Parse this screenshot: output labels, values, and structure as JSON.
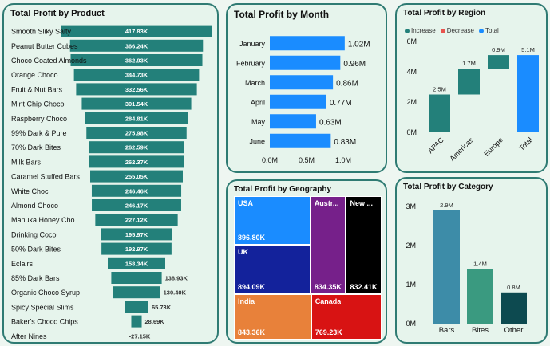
{
  "colors": {
    "teal": "#23807a",
    "blue": "#1a8cff",
    "increase": "#23807a",
    "decrease": "#e8544e",
    "total": "#1a8cff"
  },
  "chart_data": [
    {
      "id": "product",
      "type": "bar",
      "title": "Total Profit by Product",
      "orientation": "horizontal-funnel",
      "categories": [
        "Smooth Sliky Salty",
        "Peanut Butter Cubes",
        "Choco Coated Almonds",
        "Orange Choco",
        "Fruit & Nut Bars",
        "Mint Chip Choco",
        "Raspberry Choco",
        "99% Dark & Pure",
        "70% Dark Bites",
        "Milk Bars",
        "Caramel Stuffed Bars",
        "White Choc",
        "Almond Choco",
        "Manuka Honey Choco",
        "Drinking Coco",
        "50% Dark Bites",
        "Eclairs",
        "85% Dark Bars",
        "Organic Choco Syrup",
        "Spicy Special Slims",
        "Baker's Choco Chips",
        "After Nines"
      ],
      "display_labels": [
        "Smooth Sliky Salty",
        "Peanut Butter Cubes",
        "Choco Coated Almonds",
        "Orange Choco",
        "Fruit & Nut Bars",
        "Mint Chip Choco",
        "Raspberry Choco",
        "99% Dark & Pure",
        "70% Dark Bites",
        "Milk Bars",
        "Caramel Stuffed Bars",
        "White Choc",
        "Almond Choco",
        "Manuka Honey Cho...",
        "Drinking Coco",
        "50% Dark Bites",
        "Eclairs",
        "85% Dark Bars",
        "Organic Choco Syrup",
        "Spicy Special Slims",
        "Baker's Choco Chips",
        "After Nines"
      ],
      "values": [
        417.83,
        366.24,
        362.93,
        344.73,
        332.56,
        301.54,
        284.81,
        275.98,
        262.59,
        262.37,
        255.05,
        246.46,
        246.17,
        227.12,
        195.97,
        192.97,
        158.34,
        138.93,
        130.4,
        65.73,
        28.69,
        -27.15
      ],
      "value_labels": [
        "417.83K",
        "366.24K",
        "362.93K",
        "344.73K",
        "332.56K",
        "301.54K",
        "284.81K",
        "275.98K",
        "262.59K",
        "262.37K",
        "255.05K",
        "246.46K",
        "246.17K",
        "227.12K",
        "195.97K",
        "192.97K",
        "158.34K",
        "138.93K",
        "130.40K",
        "65.73K",
        "28.69K",
        "-27.15K"
      ],
      "unit": "K"
    },
    {
      "id": "month",
      "type": "bar",
      "title": "Total Profit by Month",
      "orientation": "horizontal",
      "categories": [
        "January",
        "February",
        "March",
        "April",
        "May",
        "June"
      ],
      "values": [
        1.02,
        0.96,
        0.86,
        0.77,
        0.63,
        0.83
      ],
      "value_labels": [
        "1.02M",
        "0.96M",
        "0.86M",
        "0.77M",
        "0.63M",
        "0.83M"
      ],
      "xlim": [
        0,
        1.0
      ],
      "x_ticks": [
        0,
        0.5,
        1.0
      ],
      "x_tick_labels": [
        "0.0M",
        "0.5M",
        "1.0M"
      ]
    },
    {
      "id": "region",
      "type": "bar",
      "subtype": "waterfall",
      "title": "Total Profit by Region",
      "legend": [
        "Increase",
        "Decrease",
        "Total"
      ],
      "legend_position": "top-left",
      "categories": [
        "APAC",
        "Americas",
        "Europe",
        "Total"
      ],
      "steps": [
        {
          "category": "APAC",
          "kind": "increase",
          "start": 0,
          "end": 2.5,
          "label": "2.5M"
        },
        {
          "category": "Americas",
          "kind": "increase",
          "start": 2.5,
          "end": 4.2,
          "label": "1.7M"
        },
        {
          "category": "Europe",
          "kind": "increase",
          "start": 4.2,
          "end": 5.1,
          "label": "0.9M"
        },
        {
          "category": "Total",
          "kind": "total",
          "start": 0,
          "end": 5.1,
          "label": "5.1M"
        }
      ],
      "ylim": [
        0,
        6
      ],
      "y_ticks": [
        0,
        2,
        4,
        6
      ],
      "y_tick_labels": [
        "0M",
        "2M",
        "4M",
        "6M"
      ]
    },
    {
      "id": "geography",
      "type": "treemap",
      "title": "Total Profit by Geography",
      "items": [
        {
          "name": "USA",
          "value": 896.8,
          "label": "896.80K",
          "color": "#1a8cff"
        },
        {
          "name": "UK",
          "value": 894.09,
          "label": "894.09K",
          "color": "#13229b"
        },
        {
          "name": "Austr...",
          "value": 834.35,
          "label": "834.35K",
          "color": "#76208a"
        },
        {
          "name": "New ...",
          "value": 832.41,
          "label": "832.41K",
          "color": "#000000"
        },
        {
          "name": "India",
          "value": 843.36,
          "label": "843.36K",
          "color": "#e8813a"
        },
        {
          "name": "Canada",
          "value": 769.23,
          "label": "769.23K",
          "color": "#d81313"
        }
      ]
    },
    {
      "id": "category",
      "type": "bar",
      "title": "Total Profit by Category",
      "categories": [
        "Bars",
        "Bites",
        "Other"
      ],
      "values": [
        2.9,
        1.4,
        0.8
      ],
      "value_labels": [
        "2.9M",
        "1.4M",
        "0.8M"
      ],
      "colors": [
        "#3d8ca8",
        "#3a9a80",
        "#0d4a50"
      ],
      "ylim": [
        0,
        3
      ],
      "y_ticks": [
        0,
        1,
        2,
        3
      ],
      "y_tick_labels": [
        "0M",
        "1M",
        "2M",
        "3M"
      ]
    }
  ]
}
